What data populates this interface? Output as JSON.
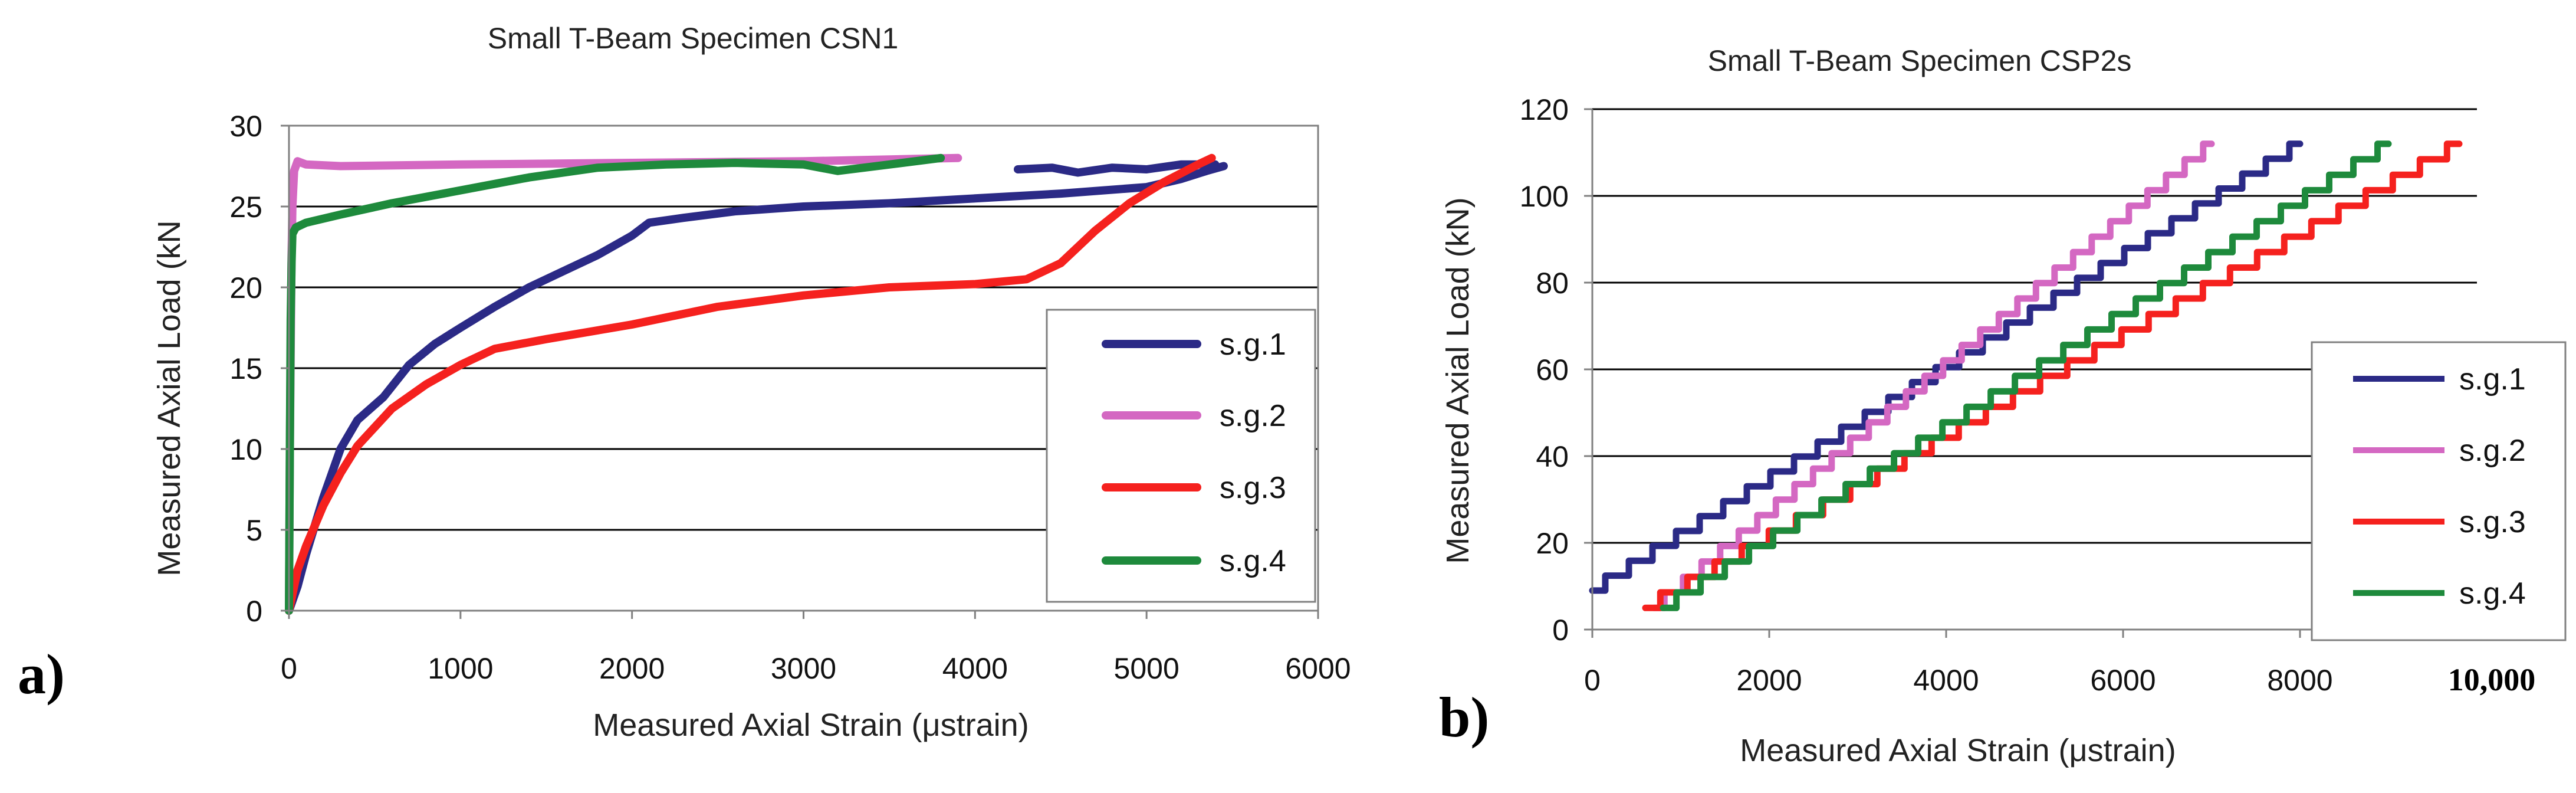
{
  "panels": {
    "a": {
      "label": "a)"
    },
    "b": {
      "label": "b)"
    }
  },
  "colors": {
    "sg1": "#2B2A86",
    "sg2": "#D468C2",
    "sg3": "#F5211E",
    "sg4": "#1E8A3C"
  },
  "chart_data": [
    {
      "id": "a",
      "type": "line",
      "title": "Small T-Beam Specimen CSN1",
      "xlabel": "Measured Axial Strain (μstrain)",
      "ylabel": "Measured Axial Load (kN",
      "xlim": [
        0,
        6000
      ],
      "ylim": [
        0,
        30
      ],
      "xticks": [
        0,
        1000,
        2000,
        3000,
        4000,
        5000,
        6000
      ],
      "xtick_labels": [
        "0",
        "1000",
        "2000",
        "3000",
        "4000",
        "5000",
        "6000"
      ],
      "yticks": [
        0,
        5,
        10,
        15,
        20,
        25,
        30
      ],
      "ytick_labels": [
        "0",
        "5",
        "10",
        "15",
        "20",
        "25",
        "30"
      ],
      "grid": true,
      "legend_position": "right",
      "series": [
        {
          "name": "s.g.1",
          "color": "#2B2A86",
          "x": [
            0,
            50,
            100,
            200,
            300,
            400,
            550,
            700,
            850,
            1000,
            1200,
            1400,
            1600,
            1800,
            2000,
            2100,
            2300,
            2600,
            3000,
            3500,
            4000,
            4500,
            5000,
            5200,
            5350,
            5450
          ],
          "y": [
            0,
            1.5,
            3.5,
            7,
            10,
            11.8,
            13.2,
            15.2,
            16.5,
            17.5,
            18.8,
            20,
            21,
            22,
            23.2,
            24,
            24.3,
            24.7,
            25,
            25.2,
            25.5,
            25.8,
            26.2,
            26.7,
            27.2,
            27.5
          ]
        },
        {
          "name": "s.g.1",
          "color": "#2B2A86",
          "x": [
            4250,
            4450,
            4600,
            4800,
            5000,
            5200,
            5400
          ],
          "y": [
            27.3,
            27.4,
            27.1,
            27.4,
            27.3,
            27.6,
            27.6
          ]
        },
        {
          "name": "s.g.2",
          "color": "#D468C2",
          "x": [
            0,
            5,
            10,
            15,
            20,
            30,
            50,
            100,
            300,
            1000,
            2000,
            3000,
            3900
          ],
          "y": [
            0,
            10,
            16,
            22,
            25,
            27.2,
            27.8,
            27.6,
            27.5,
            27.6,
            27.7,
            27.8,
            28
          ]
        },
        {
          "name": "s.g.3",
          "color": "#F5211E",
          "x": [
            0,
            50,
            100,
            200,
            300,
            400,
            600,
            800,
            1000,
            1200,
            1500,
            2000,
            2500,
            3000,
            3500,
            4000,
            4300,
            4500,
            4700,
            4900,
            5100,
            5300,
            5380
          ],
          "y": [
            0,
            2.5,
            4,
            6.5,
            8.5,
            10.2,
            12.5,
            14,
            15.2,
            16.2,
            16.8,
            17.7,
            18.8,
            19.5,
            20,
            20.2,
            20.5,
            21.5,
            23.5,
            25.2,
            26.5,
            27.6,
            28
          ]
        },
        {
          "name": "s.g.4",
          "color": "#1E8A3C",
          "x": [
            0,
            5,
            10,
            15,
            20,
            40,
            100,
            300,
            600,
            1000,
            1400,
            1800,
            2200,
            2600,
            3000,
            3200,
            3500,
            3800
          ],
          "y": [
            0,
            10,
            18,
            21.5,
            23.3,
            23.7,
            24,
            24.5,
            25.2,
            26,
            26.8,
            27.4,
            27.6,
            27.7,
            27.6,
            27.2,
            27.6,
            28
          ]
        }
      ]
    },
    {
      "id": "b",
      "type": "line",
      "title": "Small T-Beam Specimen CSP2s",
      "xlabel": "Measured Axial Strain (μstrain)",
      "ylabel": "Measured Axial Load (kN)",
      "xlim": [
        0,
        10000
      ],
      "ylim": [
        0,
        120
      ],
      "xticks": [
        0,
        2000,
        4000,
        6000,
        8000,
        10000
      ],
      "xtick_labels": [
        "0",
        "2000",
        "4000",
        "6000",
        "8000",
        "10,000"
      ],
      "yticks": [
        0,
        20,
        40,
        60,
        80,
        100,
        120
      ],
      "ytick_labels": [
        "0",
        "20",
        "40",
        "60",
        "80",
        "100",
        "120"
      ],
      "grid": true,
      "legend_position": "bottom-right",
      "series": [
        {
          "name": "s.g.1",
          "color": "#2B2A86",
          "x_start": 0,
          "x_end": 8000,
          "y_start": 9,
          "y_end": 112,
          "steps": 30
        },
        {
          "name": "s.g.2",
          "color": "#D468C2",
          "x_start": 700,
          "x_end": 7000,
          "y_start": 5,
          "y_end": 112,
          "steps": 30
        },
        {
          "name": "s.g.3",
          "color": "#F5211E",
          "x_start": 600,
          "x_end": 9800,
          "y_start": 5,
          "y_end": 112,
          "steps": 30
        },
        {
          "name": "s.g.4",
          "color": "#1E8A3C",
          "x_start": 800,
          "x_end": 9000,
          "y_start": 5,
          "y_end": 112,
          "steps": 30
        }
      ]
    }
  ]
}
